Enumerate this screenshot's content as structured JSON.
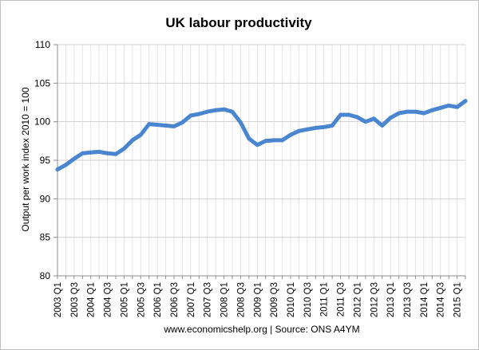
{
  "chart_data": {
    "type": "line",
    "title": "UK labour productivity",
    "xlabel": "",
    "ylabel": "Output per work index 2010 = 100",
    "source": "www.economicshelp.org | Source: ONS A4YM",
    "ylim": [
      80,
      110
    ],
    "yticks": [
      80,
      85,
      90,
      95,
      100,
      105,
      110
    ],
    "grid": true,
    "line_color": "#4a86d0",
    "x": [
      "2003 Q1",
      "2003 Q2",
      "2003 Q3",
      "2003 Q4",
      "2004 Q1",
      "2004 Q2",
      "2004 Q3",
      "2004 Q4",
      "2005 Q1",
      "2005 Q2",
      "2005 Q3",
      "2005 Q4",
      "2006 Q1",
      "2006 Q2",
      "2006 Q3",
      "2006 Q4",
      "2007 Q1",
      "2007 Q2",
      "2007 Q3",
      "2007 Q4",
      "2008 Q1",
      "2008 Q2",
      "2008 Q3",
      "2008 Q4",
      "2009 Q1",
      "2009 Q2",
      "2009 Q3",
      "2009 Q4",
      "2010 Q1",
      "2010 Q2",
      "2010 Q3",
      "2010 Q4",
      "2011 Q1",
      "2011 Q2",
      "2011 Q3",
      "2011 Q4",
      "2012 Q1",
      "2012 Q2",
      "2012 Q3",
      "2012 Q4",
      "2013 Q1",
      "2013 Q2",
      "2013 Q3",
      "2013 Q4",
      "2014 Q1",
      "2014 Q2",
      "2014 Q3",
      "2014 Q4",
      "2015 Q1",
      "2015 Q2"
    ],
    "x_tick_labels": [
      "2003 Q1",
      "2003 Q3",
      "2004 Q1",
      "2004 Q3",
      "2005 Q1",
      "2005 Q3",
      "2006 Q1",
      "2006 Q3",
      "2007 Q1",
      "2007 Q3",
      "2008 Q1",
      "2008 Q3",
      "2009 Q1",
      "2009 Q3",
      "2010 Q1",
      "2010 Q3",
      "2011 Q1",
      "2011 Q3",
      "2012 Q1",
      "2012 Q3",
      "2013 Q1",
      "2013 Q3",
      "2014 Q1",
      "2014 Q3",
      "2015 Q1"
    ],
    "series": [
      {
        "values": [
          93.8,
          94.4,
          95.2,
          95.9,
          96.0,
          96.1,
          95.9,
          95.8,
          96.5,
          97.6,
          98.3,
          99.7,
          99.6,
          99.5,
          99.4,
          99.9,
          100.8,
          101.0,
          101.3,
          101.5,
          101.6,
          101.3,
          99.9,
          97.8,
          97.0,
          97.5,
          97.6,
          97.6,
          98.3,
          98.8,
          99.0,
          99.2,
          99.3,
          99.5,
          100.9,
          100.9,
          100.6,
          100.0,
          100.4,
          99.5,
          100.5,
          101.1,
          101.3,
          101.3,
          101.1,
          101.5,
          101.8,
          102.1,
          101.9,
          102.7
        ]
      }
    ]
  }
}
